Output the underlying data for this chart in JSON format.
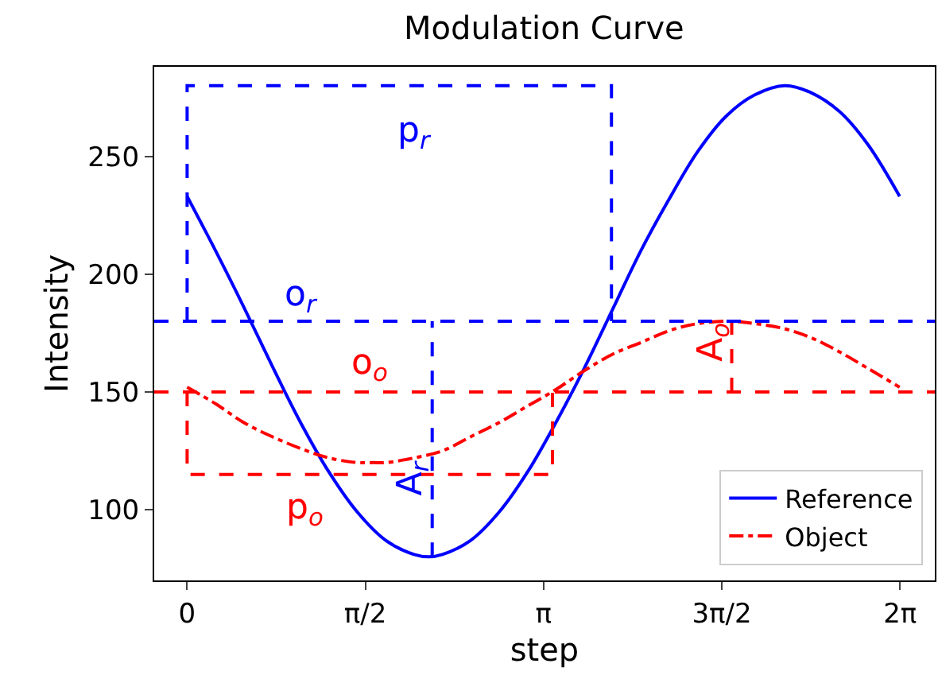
{
  "chart_data": {
    "type": "line",
    "title": "Modulation Curve",
    "xlabel": "step",
    "ylabel": "Intensity",
    "xlim": [
      -0.29,
      6.59
    ],
    "ylim": [
      70,
      288
    ],
    "xticks": [
      {
        "value": 0,
        "label": "0"
      },
      {
        "value": 1.5708,
        "label": "π/2"
      },
      {
        "value": 3.1416,
        "label": "π"
      },
      {
        "value": 4.7124,
        "label": "3π/2"
      },
      {
        "value": 6.2832,
        "label": "2π"
      }
    ],
    "yticks": [
      100,
      150,
      200,
      250
    ],
    "legend": "bottom right",
    "series": [
      {
        "name": "Reference",
        "color": "#0000ff",
        "line_style": "solid",
        "x": [
          0,
          0.25,
          0.5,
          0.75,
          1.0,
          1.25,
          1.5,
          1.75,
          2.0,
          2.13,
          2.25,
          2.5,
          2.75,
          3.0,
          3.25,
          3.5,
          3.75,
          4.0,
          4.25,
          4.5,
          4.75,
          5.0,
          5.27,
          5.5,
          5.75,
          6.0,
          6.28
        ],
        "values": [
          233,
          210,
          186,
          161,
          137,
          116,
          99,
          87,
          81,
          80,
          81,
          87,
          99,
          116,
          137,
          160,
          185,
          210,
          232,
          252,
          267,
          276,
          280,
          277,
          269,
          255,
          233
        ]
      },
      {
        "name": "Object",
        "color": "#ff0000",
        "line_style": "dashdot",
        "x": [
          0,
          0.25,
          0.5,
          0.75,
          1.0,
          1.25,
          1.5,
          1.64,
          1.75,
          2.0,
          2.25,
          2.5,
          2.75,
          3.0,
          3.25,
          3.5,
          3.75,
          4.0,
          4.25,
          4.5,
          4.78,
          5.0,
          5.25,
          5.5,
          5.75,
          6.0,
          6.28
        ],
        "values": [
          152,
          145,
          137,
          131,
          126,
          122,
          120,
          120,
          120,
          122,
          125,
          131,
          137,
          144,
          151,
          159,
          166,
          171,
          176,
          179,
          180,
          179,
          177,
          173,
          167,
          160,
          152
        ]
      },
      {
        "color": "#0000ff",
        "line_style": "dashed",
        "x": [
          0,
          0,
          3.74,
          3.74
        ],
        "values": [
          180,
          280,
          280,
          180
        ]
      },
      {
        "color": "#ff0000",
        "line_style": "dashed",
        "x": [
          0,
          0,
          3.22,
          3.22
        ],
        "values": [
          150,
          115,
          115,
          150
        ]
      },
      {
        "color": "#0000ff",
        "line_style": "dashed",
        "x": [
          2.16,
          2.16
        ],
        "values": [
          80,
          180
        ]
      },
      {
        "color": "#ff0000",
        "line_style": "dashed",
        "x": [
          4.8,
          4.8
        ],
        "values": [
          150,
          180
        ]
      }
    ],
    "ref_lines": [
      {
        "axis": "y",
        "value": 180,
        "color": "#0000ff",
        "line_style": "dashed"
      },
      {
        "axis": "y",
        "value": 150,
        "color": "#ff0000",
        "line_style": "dashed"
      }
    ],
    "annotations": [
      "p$_{r}$",
      "o$_{r}$",
      "o$_{o}$",
      "p$_{o}$",
      "A$_{r}$",
      "A$_{o}$"
    ]
  }
}
